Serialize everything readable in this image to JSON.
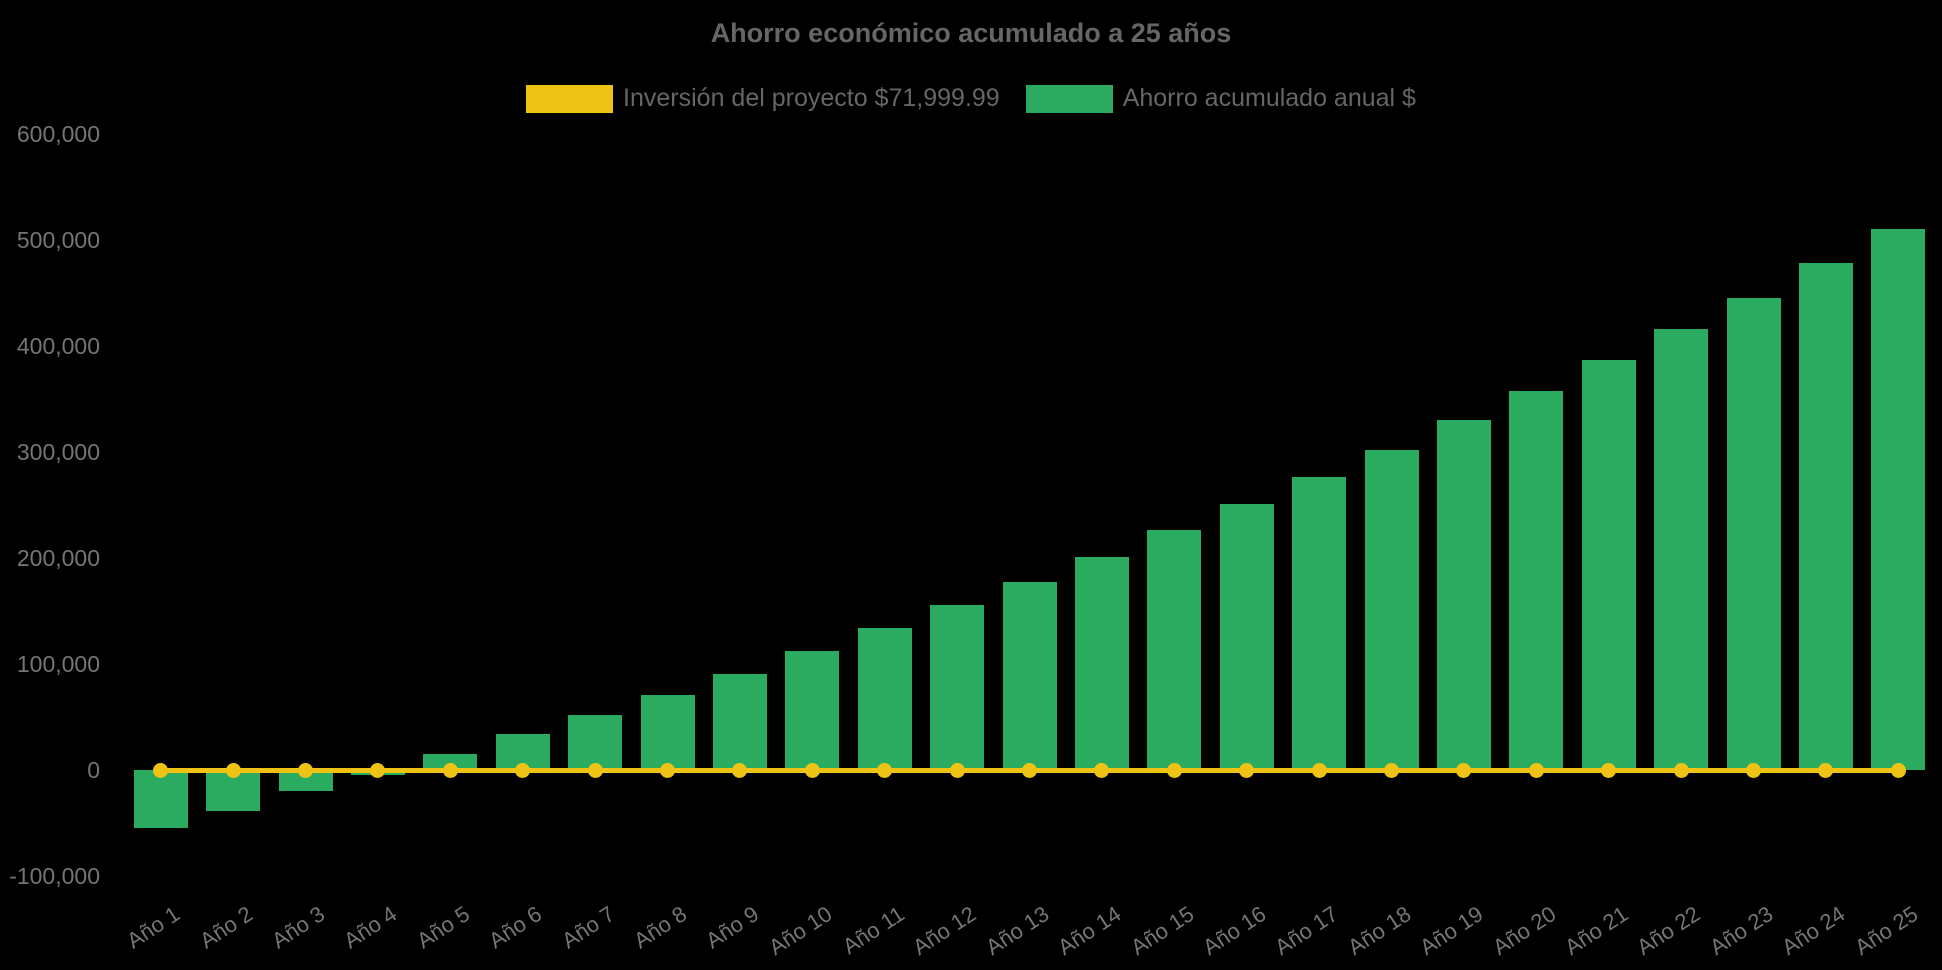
{
  "page": {
    "background_color": "#000000"
  },
  "chart": {
    "title": "Ahorro económico acumulado a 25 años",
    "legend": [
      {
        "label": "Inversión del proyecto $71,999.99",
        "color": "#efc315",
        "series_type": "line"
      },
      {
        "label": "Ahorro acumulado anual $",
        "color": "#2aab60",
        "series_type": "bar"
      }
    ]
  },
  "chart_data": {
    "type": "bar",
    "title": "Ahorro económico acumulado a 25 años",
    "categories": [
      "Año 1",
      "Año 2",
      "Año 3",
      "Año 4",
      "Año 5",
      "Año 6",
      "Año 7",
      "Año 8",
      "Año 9",
      "Año 10",
      "Año 11",
      "Año 12",
      "Año 13",
      "Año 14",
      "Año 15",
      "Año 16",
      "Año 17",
      "Año 18",
      "Año 19",
      "Año 20",
      "Año 21",
      "Año 22",
      "Año 23",
      "Año 24",
      "Año 25"
    ],
    "series": [
      {
        "name": "Inversión del proyecto $71,999.99",
        "type": "line",
        "color": "#efc315",
        "marker": "circle",
        "values": [
          0,
          0,
          0,
          0,
          0,
          0,
          0,
          0,
          0,
          0,
          0,
          0,
          0,
          0,
          0,
          0,
          0,
          0,
          0,
          0,
          0,
          0,
          0,
          0,
          0
        ]
      },
      {
        "name": "Ahorro acumulado anual $",
        "type": "bar",
        "color": "#2aab60",
        "values": [
          -54500,
          -38500,
          -20000,
          -4500,
          15000,
          33500,
          51500,
          71000,
          91000,
          112500,
          134000,
          156000,
          177000,
          201000,
          226000,
          251000,
          276500,
          302000,
          330000,
          357500,
          387000,
          416000,
          445500,
          478000,
          510500
        ]
      }
    ],
    "xlabel": "",
    "ylabel": "",
    "y_axis": {
      "tick_labels": [
        "600,000",
        "500,000",
        "400,000",
        "300,000",
        "200,000",
        "100,000",
        "0",
        "-100,000"
      ],
      "tick_values": [
        600000,
        500000,
        400000,
        300000,
        200000,
        100000,
        0,
        -100000
      ],
      "range": [
        -100000,
        600000
      ]
    },
    "grid": false,
    "background": "#000000",
    "legend_position": "top",
    "x_tick_rotation_deg": -33
  }
}
